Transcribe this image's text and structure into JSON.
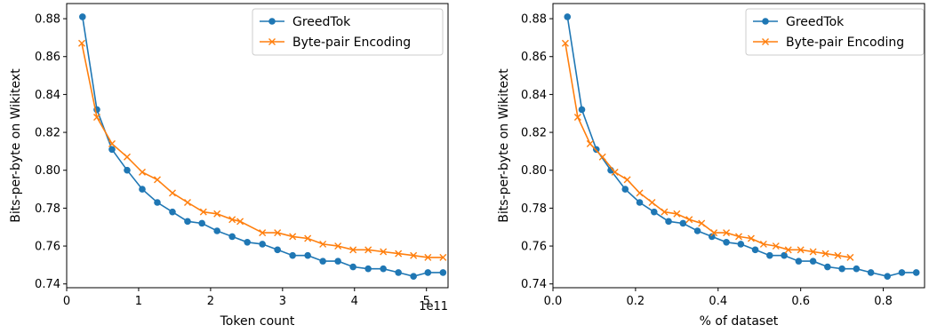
{
  "colors": {
    "greedtok": "#1f77b4",
    "bpe": "#ff7f0e"
  },
  "chart_data": [
    {
      "type": "line",
      "xlabel": "Token count",
      "ylabel": "Bits-per-byte on Wikitext",
      "x_scale_label": "1e11",
      "xlim": [
        0,
        5.3
      ],
      "ylim": [
        0.738,
        0.888
      ],
      "xticks": [
        0,
        1,
        2,
        3,
        4,
        5
      ],
      "xtick_labels": [
        "0",
        "1",
        "2",
        "3",
        "4",
        "5"
      ],
      "yticks": [
        0.74,
        0.76,
        0.78,
        0.8,
        0.82,
        0.84,
        0.86,
        0.88
      ],
      "ytick_labels": [
        "0.74",
        "0.76",
        "0.78",
        "0.80",
        "0.82",
        "0.84",
        "0.86",
        "0.88"
      ],
      "legend_position": "top-right",
      "series": [
        {
          "name": "GreedTok",
          "marker": "circle",
          "color": "#1f77b4",
          "x": [
            0.22,
            0.42,
            0.63,
            0.84,
            1.05,
            1.26,
            1.47,
            1.68,
            1.88,
            2.09,
            2.3,
            2.51,
            2.72,
            2.93,
            3.14,
            3.35,
            3.56,
            3.77,
            3.98,
            4.19,
            4.4,
            4.61,
            4.82,
            5.02,
            5.23
          ],
          "y": [
            0.881,
            0.832,
            0.811,
            0.8,
            0.79,
            0.783,
            0.778,
            0.773,
            0.772,
            0.768,
            0.765,
            0.762,
            0.761,
            0.758,
            0.755,
            0.755,
            0.752,
            0.752,
            0.749,
            0.748,
            0.748,
            0.746,
            0.744,
            0.746,
            0.746
          ]
        },
        {
          "name": "Byte-pair Encoding",
          "marker": "x",
          "color": "#ff7f0e",
          "x": [
            0.21,
            0.42,
            0.63,
            0.84,
            1.05,
            1.26,
            1.47,
            1.68,
            1.9,
            2.09,
            2.3,
            2.41,
            2.72,
            2.93,
            3.14,
            3.35,
            3.56,
            3.77,
            3.98,
            4.19,
            4.4,
            4.61,
            4.82,
            5.02,
            5.23
          ],
          "y": [
            0.867,
            0.828,
            0.814,
            0.807,
            0.799,
            0.795,
            0.788,
            0.783,
            0.778,
            0.777,
            0.774,
            0.773,
            0.767,
            0.767,
            0.765,
            0.764,
            0.761,
            0.76,
            0.758,
            0.758,
            0.757,
            0.756,
            0.755,
            0.754,
            0.754
          ]
        }
      ]
    },
    {
      "type": "line",
      "xlabel": "% of dataset",
      "ylabel": "Bits-per-byte on Wikitext",
      "xlim": [
        0,
        0.9
      ],
      "ylim": [
        0.738,
        0.888
      ],
      "xticks": [
        0.0,
        0.2,
        0.4,
        0.6,
        0.8
      ],
      "xtick_labels": [
        "0.0",
        "0.2",
        "0.4",
        "0.6",
        "0.8"
      ],
      "yticks": [
        0.74,
        0.76,
        0.78,
        0.8,
        0.82,
        0.84,
        0.86,
        0.88
      ],
      "ytick_labels": [
        "0.74",
        "0.76",
        "0.78",
        "0.80",
        "0.82",
        "0.84",
        "0.86",
        "0.88"
      ],
      "legend_position": "top-right",
      "series": [
        {
          "name": "GreedTok",
          "marker": "circle",
          "color": "#1f77b4",
          "x": [
            0.035,
            0.07,
            0.105,
            0.14,
            0.175,
            0.21,
            0.245,
            0.28,
            0.315,
            0.35,
            0.385,
            0.42,
            0.455,
            0.49,
            0.525,
            0.56,
            0.595,
            0.63,
            0.665,
            0.7,
            0.735,
            0.77,
            0.81,
            0.845,
            0.88
          ],
          "y": [
            0.881,
            0.832,
            0.811,
            0.8,
            0.79,
            0.783,
            0.778,
            0.773,
            0.772,
            0.768,
            0.765,
            0.762,
            0.761,
            0.758,
            0.755,
            0.755,
            0.752,
            0.752,
            0.749,
            0.748,
            0.748,
            0.746,
            0.744,
            0.746,
            0.746
          ]
        },
        {
          "name": "Byte-pair Encoding",
          "marker": "x",
          "color": "#ff7f0e",
          "x": [
            0.03,
            0.06,
            0.09,
            0.12,
            0.15,
            0.18,
            0.21,
            0.24,
            0.27,
            0.3,
            0.33,
            0.36,
            0.39,
            0.42,
            0.45,
            0.48,
            0.51,
            0.54,
            0.57,
            0.6,
            0.63,
            0.66,
            0.69,
            0.72
          ],
          "y": [
            0.867,
            0.828,
            0.814,
            0.807,
            0.799,
            0.795,
            0.788,
            0.783,
            0.778,
            0.777,
            0.774,
            0.772,
            0.767,
            0.767,
            0.765,
            0.764,
            0.761,
            0.76,
            0.758,
            0.758,
            0.757,
            0.756,
            0.755,
            0.754
          ]
        }
      ]
    }
  ]
}
